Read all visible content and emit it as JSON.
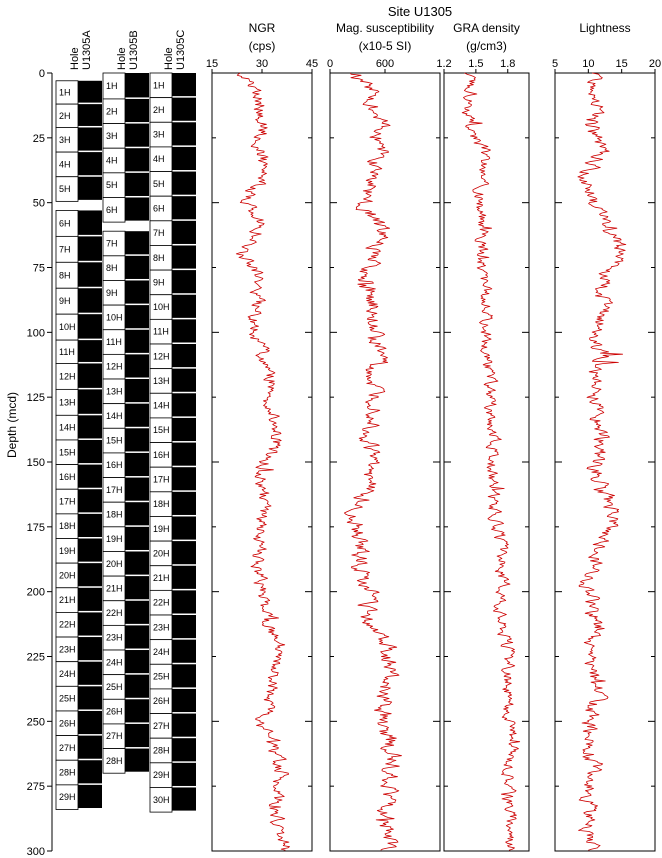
{
  "chart_data": {
    "type": "line",
    "title": "Site U1305",
    "ylabel": "Depth (mcd)",
    "ylim": [
      300,
      0
    ],
    "yticks": [
      0,
      25,
      50,
      75,
      100,
      125,
      150,
      175,
      200,
      225,
      250,
      275,
      300
    ],
    "line_color": "#cc0000",
    "holes": [
      {
        "label": [
          "Hole",
          "U1305A"
        ],
        "cores": [
          {
            "name": "1H",
            "top": 3,
            "bottom": 12
          },
          {
            "name": "2H",
            "top": 12,
            "bottom": 21
          },
          {
            "name": "3H",
            "top": 21,
            "bottom": 30.5
          },
          {
            "name": "4H",
            "top": 30.5,
            "bottom": 40
          },
          {
            "name": "5H",
            "top": 40,
            "bottom": 49.5
          },
          {
            "name": "6H",
            "top": 53,
            "bottom": 63
          },
          {
            "name": "7H",
            "top": 63,
            "bottom": 73
          },
          {
            "name": "8H",
            "top": 73,
            "bottom": 83
          },
          {
            "name": "9H",
            "top": 83,
            "bottom": 93
          },
          {
            "name": "10H",
            "top": 93,
            "bottom": 103
          },
          {
            "name": "11H",
            "top": 103,
            "bottom": 112
          },
          {
            "name": "12H",
            "top": 112,
            "bottom": 122
          },
          {
            "name": "13H",
            "top": 122,
            "bottom": 132
          },
          {
            "name": "14H",
            "top": 132,
            "bottom": 141.5
          },
          {
            "name": "15H",
            "top": 141.5,
            "bottom": 151
          },
          {
            "name": "16H",
            "top": 151,
            "bottom": 160.5
          },
          {
            "name": "17H",
            "top": 160.5,
            "bottom": 170
          },
          {
            "name": "18H",
            "top": 170,
            "bottom": 179.5
          },
          {
            "name": "19H",
            "top": 179.5,
            "bottom": 189
          },
          {
            "name": "20H",
            "top": 189,
            "bottom": 198.5
          },
          {
            "name": "21H",
            "top": 198.5,
            "bottom": 208
          },
          {
            "name": "22H",
            "top": 208,
            "bottom": 217.5
          },
          {
            "name": "23H",
            "top": 217.5,
            "bottom": 227
          },
          {
            "name": "24H",
            "top": 227,
            "bottom": 236.5
          },
          {
            "name": "25H",
            "top": 236.5,
            "bottom": 246
          },
          {
            "name": "26H",
            "top": 246,
            "bottom": 255.5
          },
          {
            "name": "27H",
            "top": 255.5,
            "bottom": 265
          },
          {
            "name": "28H",
            "top": 265,
            "bottom": 274.5
          },
          {
            "name": "29H",
            "top": 274.5,
            "bottom": 284
          }
        ]
      },
      {
        "label": [
          "Hole",
          "U1305B"
        ],
        "cores": [
          {
            "name": "1H",
            "top": 0,
            "bottom": 10
          },
          {
            "name": "2H",
            "top": 10,
            "bottom": 19.5
          },
          {
            "name": "3H",
            "top": 19.5,
            "bottom": 29
          },
          {
            "name": "4H",
            "top": 29,
            "bottom": 38.5
          },
          {
            "name": "5H",
            "top": 38.5,
            "bottom": 48
          },
          {
            "name": "6H",
            "top": 48,
            "bottom": 57.5
          },
          {
            "name": "7H",
            "top": 61,
            "bottom": 70.5
          },
          {
            "name": "8H",
            "top": 70.5,
            "bottom": 80
          },
          {
            "name": "9H",
            "top": 80,
            "bottom": 89.5
          },
          {
            "name": "10H",
            "top": 89.5,
            "bottom": 99
          },
          {
            "name": "11H",
            "top": 99,
            "bottom": 108.5
          },
          {
            "name": "12H",
            "top": 108.5,
            "bottom": 118
          },
          {
            "name": "13H",
            "top": 118,
            "bottom": 127.5
          },
          {
            "name": "14H",
            "top": 127.5,
            "bottom": 137
          },
          {
            "name": "15H",
            "top": 137,
            "bottom": 146.5
          },
          {
            "name": "16H",
            "top": 146.5,
            "bottom": 156
          },
          {
            "name": "17H",
            "top": 156,
            "bottom": 165.5
          },
          {
            "name": "18H",
            "top": 165.5,
            "bottom": 175
          },
          {
            "name": "19H",
            "top": 175,
            "bottom": 184.5
          },
          {
            "name": "20H",
            "top": 184.5,
            "bottom": 194
          },
          {
            "name": "21H",
            "top": 194,
            "bottom": 203.5
          },
          {
            "name": "22H",
            "top": 203.5,
            "bottom": 213
          },
          {
            "name": "23H",
            "top": 213,
            "bottom": 222.5
          },
          {
            "name": "24H",
            "top": 222.5,
            "bottom": 232
          },
          {
            "name": "25H",
            "top": 232,
            "bottom": 241.5
          },
          {
            "name": "26H",
            "top": 241.5,
            "bottom": 251
          },
          {
            "name": "27H",
            "top": 251,
            "bottom": 260.5
          },
          {
            "name": "28H",
            "top": 260.5,
            "bottom": 270
          }
        ]
      },
      {
        "label": [
          "Hole",
          "U1305C"
        ],
        "cores": [
          {
            "name": "1H",
            "top": 0,
            "bottom": 9.5
          },
          {
            "name": "2H",
            "top": 9.5,
            "bottom": 19
          },
          {
            "name": "3H",
            "top": 19,
            "bottom": 28.5
          },
          {
            "name": "4H",
            "top": 28.5,
            "bottom": 38
          },
          {
            "name": "5H",
            "top": 38,
            "bottom": 47.5
          },
          {
            "name": "6H",
            "top": 47.5,
            "bottom": 57
          },
          {
            "name": "7H",
            "top": 57,
            "bottom": 66.5
          },
          {
            "name": "8H",
            "top": 66.5,
            "bottom": 76
          },
          {
            "name": "9H",
            "top": 76,
            "bottom": 85.5
          },
          {
            "name": "10H",
            "top": 85.5,
            "bottom": 95
          },
          {
            "name": "11H",
            "top": 95,
            "bottom": 104.5
          },
          {
            "name": "12H",
            "top": 104.5,
            "bottom": 114
          },
          {
            "name": "13H",
            "top": 114,
            "bottom": 123.5
          },
          {
            "name": "14H",
            "top": 123.5,
            "bottom": 133
          },
          {
            "name": "15H",
            "top": 133,
            "bottom": 142.5
          },
          {
            "name": "16H",
            "top": 142.5,
            "bottom": 152
          },
          {
            "name": "17H",
            "top": 152,
            "bottom": 161.5
          },
          {
            "name": "18H",
            "top": 161.5,
            "bottom": 171
          },
          {
            "name": "19H",
            "top": 171,
            "bottom": 180.5
          },
          {
            "name": "20H",
            "top": 180.5,
            "bottom": 190
          },
          {
            "name": "21H",
            "top": 190,
            "bottom": 199.5
          },
          {
            "name": "22H",
            "top": 199.5,
            "bottom": 209
          },
          {
            "name": "23H",
            "top": 209,
            "bottom": 218.5
          },
          {
            "name": "24H",
            "top": 218.5,
            "bottom": 228
          },
          {
            "name": "25H",
            "top": 228,
            "bottom": 237.5
          },
          {
            "name": "26H",
            "top": 237.5,
            "bottom": 247
          },
          {
            "name": "27H",
            "top": 247,
            "bottom": 256.5
          },
          {
            "name": "28H",
            "top": 256.5,
            "bottom": 266
          },
          {
            "name": "29H",
            "top": 266,
            "bottom": 275.5
          },
          {
            "name": "30H",
            "top": 275.5,
            "bottom": 285
          }
        ]
      }
    ],
    "panels": [
      {
        "name": "NGR",
        "unit": "(cps)",
        "xlim": [
          15,
          45
        ],
        "xticks": [
          15,
          30,
          45
        ],
        "xtick_labels": [
          "15",
          "30",
          "45"
        ],
        "depths": [
          0,
          10,
          20,
          30,
          40,
          50,
          60,
          70,
          80,
          90,
          100,
          110,
          120,
          130,
          140,
          150,
          160,
          170,
          180,
          190,
          200,
          210,
          220,
          230,
          240,
          250,
          260,
          270,
          280,
          290,
          300
        ],
        "values": [
          25,
          30,
          30,
          30,
          30,
          25,
          30,
          24,
          30,
          28,
          28,
          30,
          34,
          32,
          35,
          31,
          30,
          30,
          29,
          29,
          30,
          31,
          35,
          34,
          32,
          30,
          34,
          36,
          34,
          35,
          37
        ]
      },
      {
        "name": "Mag. susceptibility",
        "unit": "(x10-5 SI)",
        "xlim": [
          0,
          1200
        ],
        "xticks": [
          0,
          600
        ],
        "xtick_labels": [
          "0",
          "600"
        ],
        "depths": [
          0,
          10,
          20,
          30,
          40,
          50,
          60,
          70,
          80,
          90,
          100,
          110,
          120,
          130,
          140,
          150,
          160,
          170,
          180,
          190,
          200,
          210,
          220,
          230,
          240,
          250,
          260,
          270,
          280,
          290,
          300
        ],
        "values": [
          280,
          500,
          520,
          560,
          460,
          360,
          550,
          480,
          380,
          480,
          500,
          540,
          420,
          530,
          420,
          430,
          400,
          300,
          300,
          330,
          440,
          420,
          640,
          620,
          600,
          560,
          680,
          660,
          620,
          640,
          600
        ]
      },
      {
        "name": "GRA density",
        "unit": "(g/cm3)",
        "xlim": [
          1.2,
          2.0
        ],
        "xticks": [
          1.2,
          1.5,
          1.8
        ],
        "xtick_labels": [
          "1.2",
          "1.5",
          "1.8"
        ],
        "depths": [
          0,
          10,
          20,
          30,
          40,
          50,
          60,
          70,
          80,
          90,
          100,
          110,
          120,
          130,
          140,
          150,
          160,
          170,
          180,
          190,
          200,
          210,
          220,
          230,
          240,
          250,
          260,
          270,
          280,
          290,
          300
        ],
        "values": [
          1.42,
          1.46,
          1.42,
          1.58,
          1.56,
          1.52,
          1.58,
          1.54,
          1.58,
          1.6,
          1.6,
          1.6,
          1.64,
          1.64,
          1.68,
          1.66,
          1.66,
          1.68,
          1.72,
          1.74,
          1.76,
          1.74,
          1.8,
          1.8,
          1.8,
          1.8,
          1.84,
          1.82,
          1.82,
          1.84,
          1.84
        ]
      },
      {
        "name": "Lightness",
        "unit": "",
        "xlim": [
          5,
          20
        ],
        "xticks": [
          5,
          10,
          15,
          20
        ],
        "xtick_labels": [
          "5",
          "10",
          "15",
          "20"
        ],
        "depths": [
          0,
          10,
          20,
          30,
          40,
          50,
          60,
          70,
          80,
          90,
          100,
          110,
          120,
          130,
          140,
          150,
          160,
          170,
          180,
          190,
          200,
          210,
          220,
          230,
          240,
          250,
          260,
          270,
          280,
          290,
          300
        ],
        "values": [
          11,
          12,
          10,
          12,
          10,
          11,
          13,
          15,
          12,
          12,
          11,
          12,
          11,
          12,
          12,
          11,
          12,
          14,
          12,
          11,
          10,
          11,
          10,
          11,
          11,
          10,
          10,
          11,
          10,
          10,
          11
        ]
      }
    ]
  }
}
